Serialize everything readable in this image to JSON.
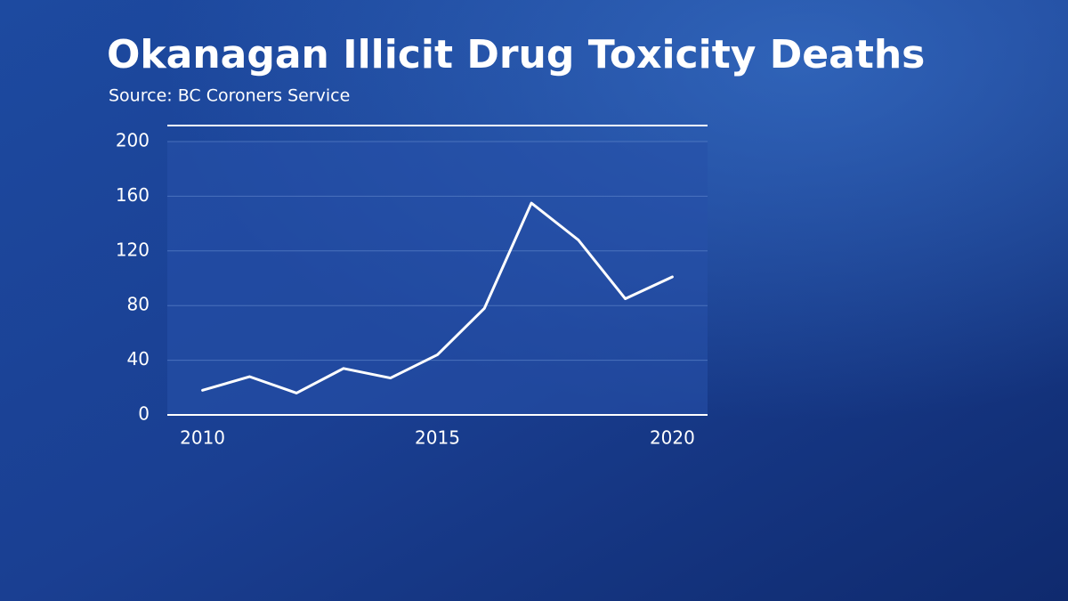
{
  "chart_data": {
    "type": "line",
    "title": "Okanagan Illicit Drug Toxicity Deaths",
    "subtitle": "Source: BC Coroners Service",
    "x": [
      2010,
      2011,
      2012,
      2013,
      2014,
      2015,
      2016,
      2017,
      2018,
      2019,
      2020
    ],
    "series": [
      {
        "color": "#ffffff",
        "values": [
          18,
          28,
          16,
          34,
          27,
          44,
          78,
          155,
          128,
          85,
          101
        ]
      }
    ],
    "xlim": [
      2009.25,
      2020.75
    ],
    "xticks": [
      2010,
      2015,
      2020
    ],
    "ylim": [
      0,
      200
    ],
    "yticks": [
      0,
      40,
      80,
      120,
      160,
      200
    ],
    "grid": true
  }
}
